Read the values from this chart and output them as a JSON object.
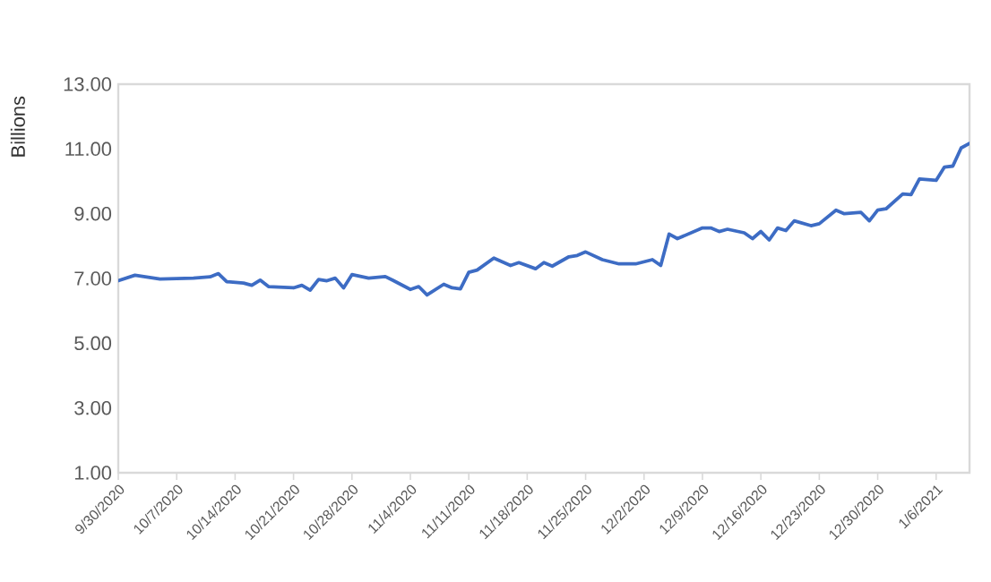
{
  "chart_data": {
    "type": "line",
    "ylabel": "Billions",
    "x": [
      "2020-09-30",
      "2020-10-02",
      "2020-10-05",
      "2020-10-09",
      "2020-10-11",
      "2020-10-12",
      "2020-10-13",
      "2020-10-15",
      "2020-10-16",
      "2020-10-17",
      "2020-10-18",
      "2020-10-21",
      "2020-10-22",
      "2020-10-23",
      "2020-10-24",
      "2020-10-25",
      "2020-10-26",
      "2020-10-27",
      "2020-10-28",
      "2020-10-30",
      "2020-11-01",
      "2020-11-02",
      "2020-11-04",
      "2020-11-05",
      "2020-11-06",
      "2020-11-08",
      "2020-11-09",
      "2020-11-10",
      "2020-11-11",
      "2020-11-12",
      "2020-11-14",
      "2020-11-16",
      "2020-11-17",
      "2020-11-19",
      "2020-11-20",
      "2020-11-21",
      "2020-11-23",
      "2020-11-24",
      "2020-11-25",
      "2020-11-27",
      "2020-11-29",
      "2020-12-01",
      "2020-12-03",
      "2020-12-04",
      "2020-12-05",
      "2020-12-06",
      "2020-12-09",
      "2020-12-10",
      "2020-12-11",
      "2020-12-12",
      "2020-12-14",
      "2020-12-15",
      "2020-12-16",
      "2020-12-17",
      "2020-12-18",
      "2020-12-19",
      "2020-12-20",
      "2020-12-22",
      "2020-12-23",
      "2020-12-25",
      "2020-12-26",
      "2020-12-28",
      "2020-12-29",
      "2020-12-30",
      "2020-12-31",
      "2021-01-02",
      "2021-01-03",
      "2021-01-04",
      "2021-01-06",
      "2021-01-07",
      "2021-01-08",
      "2021-01-09",
      "2021-01-10"
    ],
    "series": [
      {
        "color": "#3d6cc4",
        "values": [
          6.93,
          7.1,
          6.98,
          7.01,
          7.05,
          7.15,
          6.9,
          6.86,
          6.79,
          6.95,
          6.75,
          6.71,
          6.79,
          6.64,
          6.97,
          6.93,
          7.01,
          6.71,
          7.12,
          7.01,
          7.06,
          6.93,
          6.66,
          6.75,
          6.49,
          6.82,
          6.71,
          6.68,
          7.19,
          7.26,
          7.63,
          7.4,
          7.49,
          7.3,
          7.49,
          7.38,
          7.67,
          7.71,
          7.82,
          7.58,
          7.45,
          7.45,
          7.58,
          7.4,
          8.37,
          8.23,
          8.56,
          8.56,
          8.45,
          8.52,
          8.41,
          8.23,
          8.45,
          8.19,
          8.56,
          8.48,
          8.78,
          8.63,
          8.69,
          9.11,
          9.0,
          9.04,
          8.78,
          9.11,
          9.15,
          9.61,
          9.59,
          10.07,
          10.03,
          10.44,
          10.47,
          11.03,
          11.17
        ]
      }
    ],
    "xlim": [
      "2020-09-30",
      "2021-01-10"
    ],
    "xticks": [
      {
        "value": "2020-09-30",
        "label": "9/30/2020"
      },
      {
        "value": "2020-10-07",
        "label": "10/7/2020"
      },
      {
        "value": "2020-10-14",
        "label": "10/14/2020"
      },
      {
        "value": "2020-10-21",
        "label": "10/21/2020"
      },
      {
        "value": "2020-10-28",
        "label": "10/28/2020"
      },
      {
        "value": "2020-11-04",
        "label": "11/4/2020"
      },
      {
        "value": "2020-11-11",
        "label": "11/11/2020"
      },
      {
        "value": "2020-11-18",
        "label": "11/18/2020"
      },
      {
        "value": "2020-11-25",
        "label": "11/25/2020"
      },
      {
        "value": "2020-12-02",
        "label": "12/2/2020"
      },
      {
        "value": "2020-12-09",
        "label": "12/9/2020"
      },
      {
        "value": "2020-12-16",
        "label": "12/16/2020"
      },
      {
        "value": "2020-12-23",
        "label": "12/23/2020"
      },
      {
        "value": "2020-12-30",
        "label": "12/30/2020"
      },
      {
        "value": "2021-01-06",
        "label": "1/6/2021"
      }
    ],
    "ylim": [
      1,
      13
    ],
    "yticks": [
      {
        "value": 1,
        "label": "1.00"
      },
      {
        "value": 3,
        "label": "3.00"
      },
      {
        "value": 5,
        "label": "5.00"
      },
      {
        "value": 7,
        "label": "7.00"
      },
      {
        "value": 9,
        "label": "9.00"
      },
      {
        "value": 11,
        "label": "11.00"
      },
      {
        "value": 13,
        "label": "13.00"
      }
    ],
    "grid": false,
    "marker": "none",
    "line_style": "solid"
  }
}
